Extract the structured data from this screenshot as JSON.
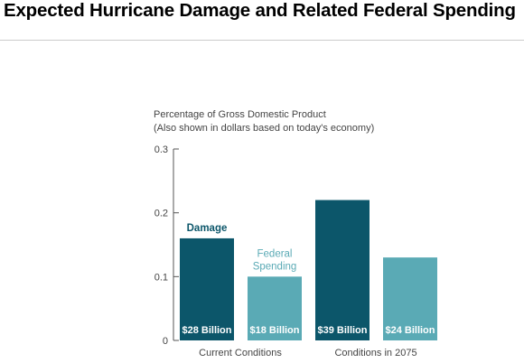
{
  "page": {
    "title": "Expected Hurricane Damage and Related Federal Spending"
  },
  "colors": {
    "damage": "#0c566a",
    "federal_spending": "#5aaab5",
    "axis": "#555555",
    "text": "#444444"
  },
  "chart_data": {
    "type": "bar",
    "title": "",
    "ylabel": "Percentage of Gross Domestic Product",
    "ylabel_note": "(Also shown in dollars based on today's economy)",
    "xlabel": "",
    "ylim": [
      0,
      0.3
    ],
    "yticks": [
      "0",
      "0.1",
      "0.2",
      "0.3"
    ],
    "categories": [
      "Current Conditions",
      "Conditions in 2075"
    ],
    "series": [
      {
        "name": "Damage",
        "values": [
          0.16,
          0.22
        ],
        "bar_labels": [
          "$28 Billion",
          "$39 Billion"
        ]
      },
      {
        "name": "Federal Spending",
        "values": [
          0.1,
          0.13
        ],
        "bar_labels": [
          "$18 Billion",
          "$24 Billion"
        ]
      }
    ],
    "legend": "inline labels above first category bars"
  }
}
